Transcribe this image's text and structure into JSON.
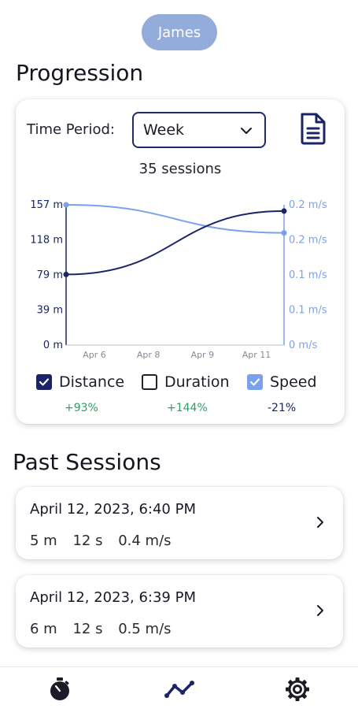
{
  "user": {
    "name": "James"
  },
  "progression": {
    "title": "Progression",
    "time_period_label": "Time Period:",
    "time_period_value": "Week",
    "sessions_count": "35 sessions"
  },
  "chart_data": {
    "type": "line",
    "x": [
      "Apr 5",
      "Apr 12"
    ],
    "xtick_labels": [
      "Apr 6",
      "Apr 8",
      "Apr 9",
      "Apr 11"
    ],
    "left_axis_ticks": [
      "157 m",
      "118 m",
      "79 m",
      "39 m",
      "0 m"
    ],
    "right_axis_ticks": [
      "0.2 m/s",
      "0.2 m/s",
      "0.1 m/s",
      "0.1 m/s",
      "0 m/s"
    ],
    "left_ylim": [
      0,
      157
    ],
    "right_ylim": [
      0,
      0.2
    ],
    "series": [
      {
        "name": "Distance",
        "axis": "left",
        "color": "#1b2466",
        "values": [
          79,
          150
        ]
      },
      {
        "name": "Speed",
        "axis": "right",
        "color": "#7aa0ee",
        "values": [
          0.2,
          0.16
        ]
      }
    ],
    "grid": false
  },
  "legend": [
    {
      "label": "Distance",
      "checked": true,
      "change": "+93%",
      "change_color": "#2e9e6a"
    },
    {
      "label": "Duration",
      "checked": false,
      "change": "+144%",
      "change_color": "#2e9e6a"
    },
    {
      "label": "Speed",
      "checked": true,
      "change": "-21%",
      "change_color": "#1b2466"
    }
  ],
  "past_sessions": {
    "title": "Past Sessions",
    "items": [
      {
        "date": "April 12, 2023, 6:40 PM",
        "distance": "5 m",
        "duration": "12 s",
        "speed": "0.4 m/s"
      },
      {
        "date": "April 12, 2023, 6:39 PM",
        "distance": "6 m",
        "duration": "12 s",
        "speed": "0.5 m/s"
      }
    ]
  },
  "nav": {
    "items": [
      "stopwatch-icon",
      "progression-icon",
      "settings-gear-icon"
    ]
  },
  "colors": {
    "accent_dark": "#1b2466",
    "accent_light": "#7aa0ee",
    "pill": "#93acd9",
    "positive": "#2e9e6a"
  }
}
